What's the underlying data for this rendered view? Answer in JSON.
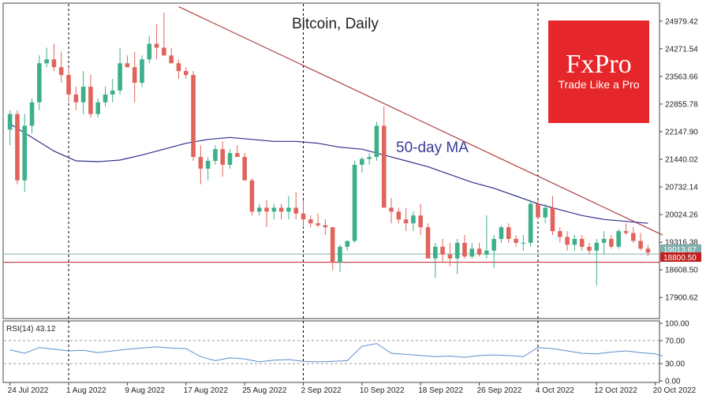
{
  "chart_data": {
    "type": "candlestick",
    "title": "Bitcoin, Daily",
    "ylim": [
      17400,
      25400
    ],
    "y_ticks": [
      "24979.42",
      "24271.54",
      "23563.66",
      "22855.78",
      "22147.90",
      "21440.02",
      "20732.14",
      "20024.26",
      "19316.38",
      "18608.50",
      "17900.62"
    ],
    "x_ticks": [
      "24 Jul 2022",
      "1 Aug 2022",
      "9 Aug 2022",
      "17 Aug 2022",
      "25 Aug 2022",
      "2 Sep 2022",
      "10 Sep 2022",
      "18 Sep 2022",
      "26 Sep 2022",
      "4 Oct 2022",
      "12 Oct 2022",
      "20 Oct 2022"
    ],
    "x_tick_indices": [
      0,
      8,
      16,
      24,
      32,
      40,
      48,
      56,
      64,
      72,
      80,
      88
    ],
    "vertical_dashed_at": [
      8,
      40,
      72
    ],
    "up_color": "#3cb08a",
    "down_color": "#e0645c",
    "ohlc": [
      [
        22200,
        22700,
        21800,
        22600
      ],
      [
        22600,
        22700,
        20800,
        20900
      ],
      [
        20900,
        22600,
        20600,
        22300
      ],
      [
        22300,
        23000,
        22100,
        22900
      ],
      [
        22900,
        24100,
        22700,
        23900
      ],
      [
        23900,
        24300,
        23800,
        24000
      ],
      [
        24000,
        24400,
        23700,
        23800
      ],
      [
        23800,
        24200,
        23400,
        23600
      ],
      [
        23600,
        23800,
        22900,
        23100
      ],
      [
        23100,
        23300,
        22700,
        22900
      ],
      [
        22900,
        23700,
        22600,
        23300
      ],
      [
        23300,
        23600,
        22500,
        22600
      ],
      [
        22600,
        23000,
        22500,
        22900
      ],
      [
        22900,
        23300,
        22800,
        23100
      ],
      [
        23100,
        23500,
        22900,
        23200
      ],
      [
        23200,
        24300,
        23100,
        23900
      ],
      [
        23900,
        24100,
        23800,
        23800
      ],
      [
        23800,
        24200,
        22900,
        23400
      ],
      [
        23400,
        24100,
        23300,
        24000
      ],
      [
        24000,
        24600,
        23900,
        24400
      ],
      [
        24400,
        24900,
        24000,
        24300
      ],
      [
        24300,
        25200,
        24100,
        24100
      ],
      [
        24100,
        24300,
        23900,
        23900
      ],
      [
        23900,
        24000,
        23500,
        23700
      ],
      [
        23700,
        23800,
        23500,
        23600
      ],
      [
        23600,
        23700,
        21400,
        21500
      ],
      [
        21500,
        21800,
        20800,
        21200
      ],
      [
        21200,
        21500,
        20900,
        21400
      ],
      [
        21400,
        21800,
        21300,
        21700
      ],
      [
        21700,
        21900,
        21000,
        21300
      ],
      [
        21300,
        21700,
        21200,
        21600
      ],
      [
        21600,
        21800,
        21500,
        21500
      ],
      [
        21500,
        21600,
        20900,
        20900
      ],
      [
        20900,
        20950,
        20000,
        20100
      ],
      [
        20100,
        20300,
        20000,
        20200
      ],
      [
        20200,
        20400,
        19700,
        20100
      ],
      [
        20100,
        20300,
        19900,
        20200
      ],
      [
        20200,
        20300,
        19900,
        20100
      ],
      [
        20100,
        20500,
        19900,
        20200
      ],
      [
        20200,
        20600,
        19900,
        20050
      ],
      [
        20050,
        20400,
        19700,
        19900
      ],
      [
        19900,
        20000,
        19700,
        19800
      ],
      [
        19800,
        20050,
        19700,
        19750
      ],
      [
        19750,
        19900,
        19500,
        19700
      ],
      [
        19700,
        19700,
        18600,
        18800
      ],
      [
        18800,
        19250,
        18550,
        19200
      ],
      [
        19200,
        19350,
        19100,
        19350
      ],
      [
        19350,
        21400,
        19300,
        21300
      ],
      [
        21300,
        21500,
        21100,
        21450
      ],
      [
        21450,
        21600,
        21300,
        21500
      ],
      [
        21500,
        22400,
        21400,
        22300
      ],
      [
        22300,
        22800,
        20200,
        20200
      ],
      [
        20200,
        20450,
        19800,
        20100
      ],
      [
        20100,
        20200,
        19800,
        19900
      ],
      [
        19900,
        20200,
        19600,
        19800
      ],
      [
        19800,
        20100,
        19600,
        20000
      ],
      [
        20000,
        20300,
        19500,
        19700
      ],
      [
        19700,
        19800,
        18900,
        18900
      ],
      [
        18900,
        19300,
        18400,
        19200
      ],
      [
        19200,
        19400,
        18800,
        19000
      ],
      [
        19000,
        19300,
        18700,
        18900
      ],
      [
        18900,
        19400,
        18500,
        19300
      ],
      [
        19300,
        19500,
        18900,
        18950
      ],
      [
        18950,
        19300,
        18900,
        19150
      ],
      [
        19150,
        19300,
        18950,
        19000
      ],
      [
        19000,
        20000,
        18900,
        19100
      ],
      [
        19100,
        19500,
        18650,
        19400
      ],
      [
        19400,
        19750,
        19300,
        19700
      ],
      [
        19700,
        19800,
        19300,
        19400
      ],
      [
        19400,
        19500,
        19200,
        19300
      ],
      [
        19300,
        19500,
        19100,
        19300
      ],
      [
        19300,
        20400,
        19200,
        20300
      ],
      [
        20300,
        20400,
        19900,
        19950
      ],
      [
        19950,
        20300,
        19800,
        20200
      ],
      [
        20200,
        20500,
        19500,
        19600
      ],
      [
        19600,
        19700,
        19300,
        19450
      ],
      [
        19450,
        19600,
        19100,
        19250
      ],
      [
        19250,
        19500,
        19100,
        19400
      ],
      [
        19400,
        19500,
        19100,
        19200
      ],
      [
        19200,
        19300,
        19000,
        19100
      ],
      [
        19100,
        19400,
        18200,
        19300
      ],
      [
        19300,
        19600,
        19000,
        19400
      ],
      [
        19400,
        19500,
        19150,
        19200
      ],
      [
        19200,
        19650,
        19150,
        19600
      ],
      [
        19600,
        19800,
        19500,
        19550
      ],
      [
        19550,
        19700,
        19300,
        19350
      ],
      [
        19350,
        19550,
        19100,
        19150
      ],
      [
        19150,
        19250,
        18950,
        19050
      ]
    ],
    "ma50": [
      [
        0,
        22350
      ],
      [
        3,
        22000
      ],
      [
        6,
        21650
      ],
      [
        9,
        21400
      ],
      [
        12,
        21380
      ],
      [
        15,
        21420
      ],
      [
        18,
        21550
      ],
      [
        21,
        21700
      ],
      [
        24,
        21850
      ],
      [
        27,
        21950
      ],
      [
        30,
        22000
      ],
      [
        33,
        21950
      ],
      [
        36,
        21900
      ],
      [
        39,
        21900
      ],
      [
        42,
        21850
      ],
      [
        45,
        21750
      ],
      [
        48,
        21700
      ],
      [
        51,
        21550
      ],
      [
        54,
        21400
      ],
      [
        57,
        21250
      ],
      [
        60,
        21050
      ],
      [
        63,
        20850
      ],
      [
        66,
        20700
      ],
      [
        69,
        20500
      ],
      [
        72,
        20300
      ],
      [
        75,
        20150
      ],
      [
        78,
        20000
      ],
      [
        81,
        19900
      ],
      [
        84,
        19850
      ],
      [
        87,
        19800
      ]
    ],
    "ma_label": "50-day MA",
    "trendline": [
      [
        23,
        25350
      ],
      [
        89,
        19500
      ]
    ],
    "support_level": 18800.5,
    "current_price": 19013.67,
    "support_label": "18800.50",
    "current_label": "19013.67",
    "rsi": {
      "label": "RSI(14) 43.12",
      "ylim": [
        0,
        100
      ],
      "y_ticks": [
        "100.00",
        "70.00",
        "30.00",
        "0.00"
      ],
      "levels": [
        70,
        30
      ],
      "values": [
        [
          0,
          54
        ],
        [
          2,
          48
        ],
        [
          4,
          58
        ],
        [
          6,
          55
        ],
        [
          8,
          52
        ],
        [
          10,
          53
        ],
        [
          12,
          49
        ],
        [
          14,
          52
        ],
        [
          16,
          55
        ],
        [
          18,
          57
        ],
        [
          20,
          59
        ],
        [
          22,
          57
        ],
        [
          24,
          56
        ],
        [
          26,
          42
        ],
        [
          28,
          35
        ],
        [
          30,
          40
        ],
        [
          32,
          38
        ],
        [
          34,
          33
        ],
        [
          36,
          36
        ],
        [
          38,
          37
        ],
        [
          40,
          34
        ],
        [
          42,
          33
        ],
        [
          44,
          34
        ],
        [
          46,
          35
        ],
        [
          48,
          60
        ],
        [
          50,
          65
        ],
        [
          52,
          48
        ],
        [
          54,
          46
        ],
        [
          56,
          44
        ],
        [
          58,
          42
        ],
        [
          60,
          43
        ],
        [
          62,
          41
        ],
        [
          64,
          44
        ],
        [
          66,
          45
        ],
        [
          68,
          44
        ],
        [
          70,
          42
        ],
        [
          72,
          58
        ],
        [
          74,
          56
        ],
        [
          76,
          52
        ],
        [
          78,
          48
        ],
        [
          80,
          47
        ],
        [
          82,
          50
        ],
        [
          84,
          52
        ],
        [
          86,
          49
        ],
        [
          88,
          47
        ],
        [
          89,
          43
        ]
      ]
    }
  },
  "logo": {
    "brand": "FxPro",
    "tagline": "Trade Like a Pro",
    "bg_color": "#e5262a"
  },
  "colors": {
    "ma": "#2e2e8c",
    "trendline": "#b04040",
    "support": "#c02020",
    "current_line": "#80b0b0",
    "rsi_line": "#5b8fc9"
  }
}
